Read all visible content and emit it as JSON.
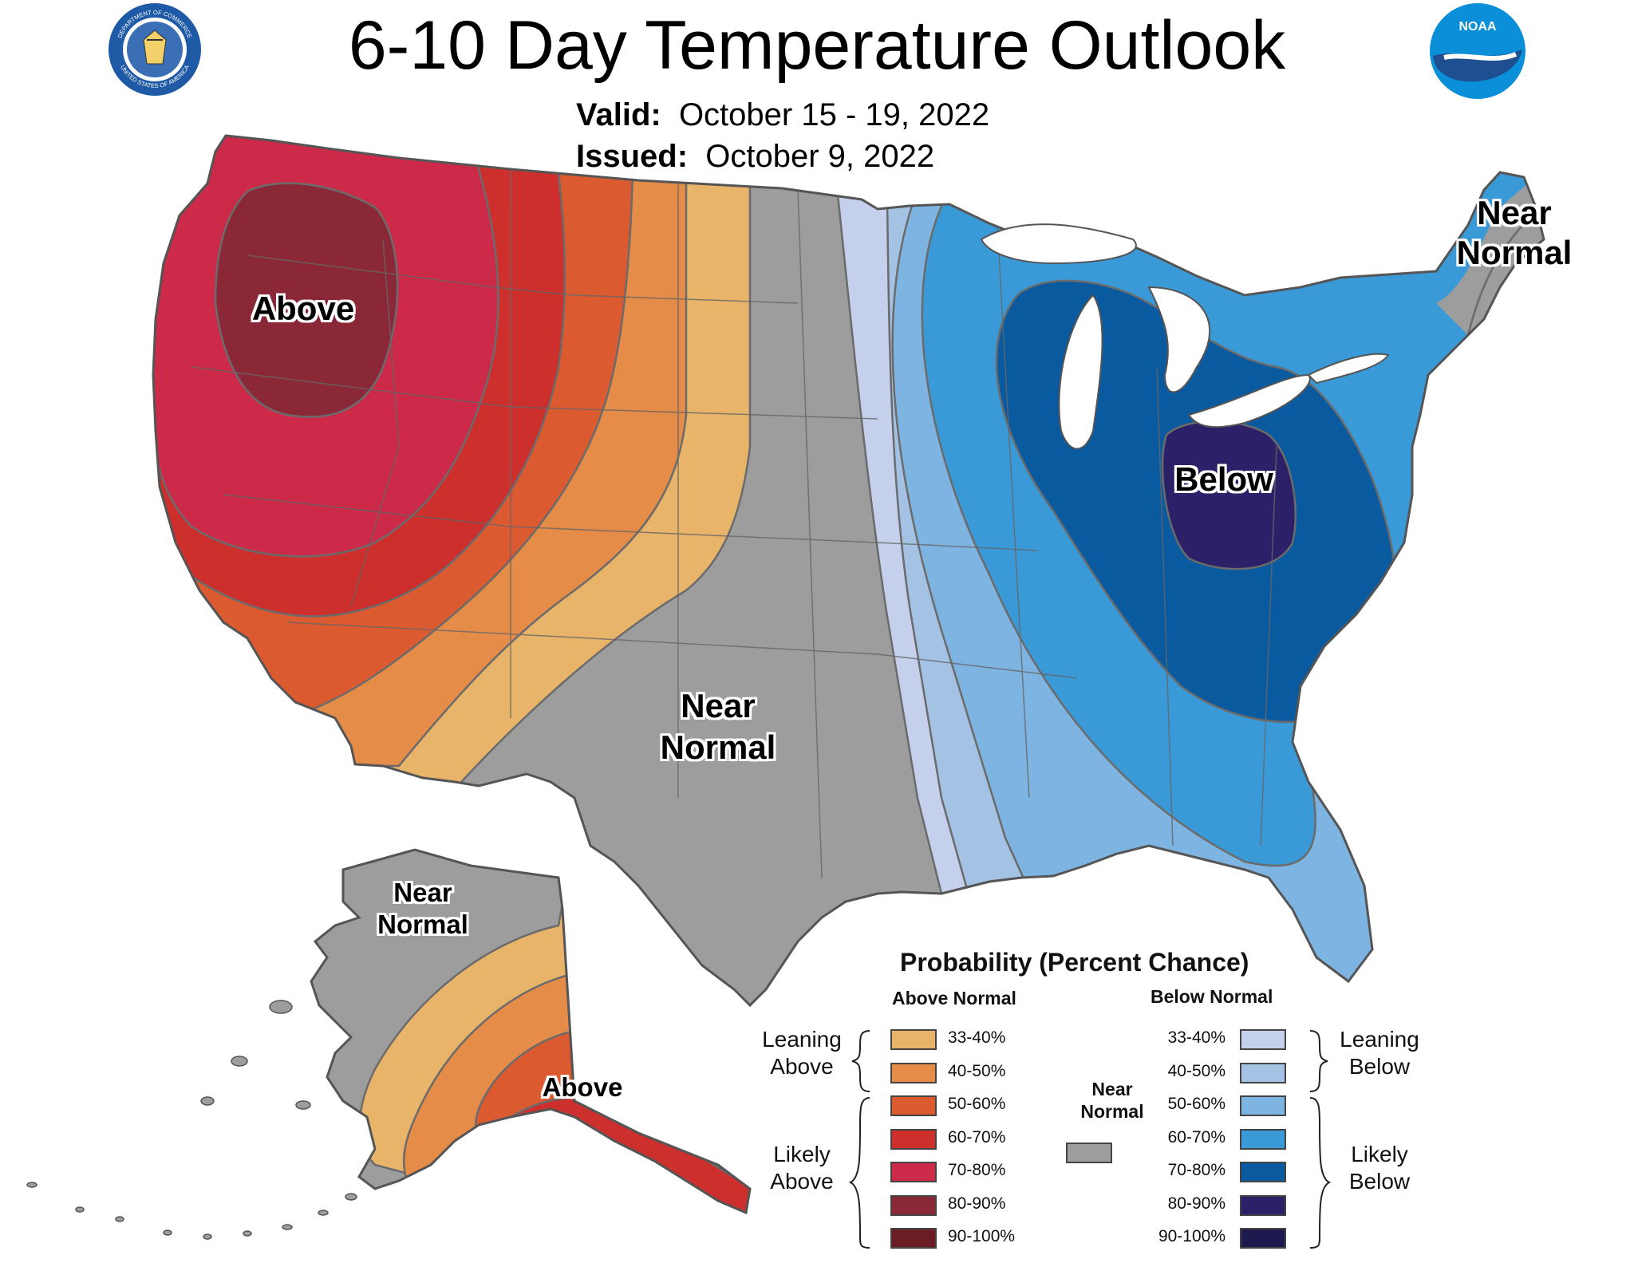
{
  "header": {
    "title": "6-10 Day Temperature Outlook",
    "valid_label": "Valid:",
    "valid_value": "October 15 - 19, 2022",
    "issued_label": "Issued:",
    "issued_value": "October 9, 2022"
  },
  "logos": {
    "commerce_seal_top": "DEPARTMENT OF COMMERCE",
    "commerce_seal_bottom": "UNITED STATES OF AMERICA",
    "noaa": "NOAA"
  },
  "map_labels": {
    "above_conus": "Above",
    "below_conus": "Below",
    "near_normal_southwest_1": "Near",
    "near_normal_southwest_2": "Normal",
    "near_normal_northeast_1": "Near",
    "near_normal_northeast_2": "Normal",
    "near_normal_alaska_1": "Near",
    "near_normal_alaska_2": "Normal",
    "above_alaska": "Above"
  },
  "legend": {
    "title": "Probability (Percent Chance)",
    "above_header": "Above Normal",
    "below_header": "Below Normal",
    "near_1": "Near",
    "near_2": "Normal",
    "leaning_above_1": "Leaning",
    "leaning_above_2": "Above",
    "likely_above_1": "Likely",
    "likely_above_2": "Above",
    "leaning_below_1": "Leaning",
    "leaning_below_2": "Below",
    "likely_below_1": "Likely",
    "likely_below_2": "Below",
    "above": [
      {
        "label": "33-40%",
        "color": "#e8b46a"
      },
      {
        "label": "40-50%",
        "color": "#e48c48"
      },
      {
        "label": "50-60%",
        "color": "#dc5a30"
      },
      {
        "label": "60-70%",
        "color": "#cc2f2c"
      },
      {
        "label": "70-80%",
        "color": "#cc2a48"
      },
      {
        "label": "80-90%",
        "color": "#8b2838"
      },
      {
        "label": "90-100%",
        "color": "#6b1c24"
      }
    ],
    "below": [
      {
        "label": "33-40%",
        "color": "#c4d0ec"
      },
      {
        "label": "40-50%",
        "color": "#a4c2e4"
      },
      {
        "label": "50-60%",
        "color": "#7eb4e2"
      },
      {
        "label": "60-70%",
        "color": "#3a9ad8"
      },
      {
        "label": "70-80%",
        "color": "#0a5aa0"
      },
      {
        "label": "80-90%",
        "color": "#2c2068"
      },
      {
        "label": "90-100%",
        "color": "#1c1a4e"
      }
    ],
    "near_color": "#9d9d9d"
  }
}
